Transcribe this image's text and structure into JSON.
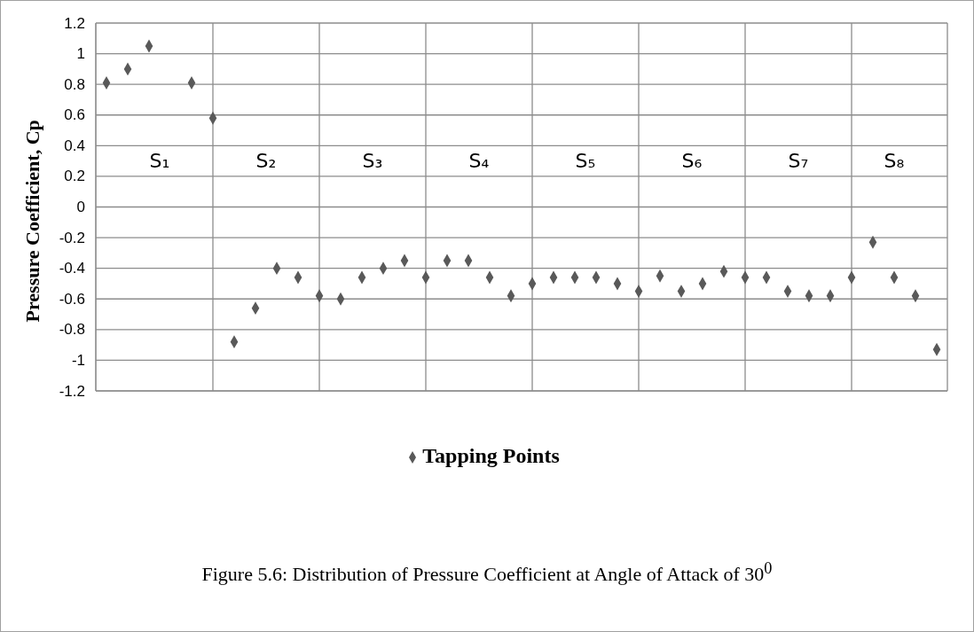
{
  "chart_data": {
    "type": "scatter",
    "ylabel": "Pressure  Coefficient, Cp",
    "categories": [
      null,
      null,
      null,
      null,
      null,
      null,
      null,
      null,
      null,
      null,
      null,
      null,
      null,
      null,
      null,
      null,
      null,
      null,
      null,
      null,
      null,
      null,
      null,
      null,
      null,
      null,
      null,
      null,
      null,
      null,
      null,
      null,
      null,
      null,
      null,
      null,
      null,
      null,
      null,
      null
    ],
    "series": [
      {
        "name": "Tapping Points",
        "color": "#595959",
        "values": [
          0.81,
          0.9,
          1.05,
          null,
          0.81,
          0.58,
          -0.88,
          -0.66,
          -0.4,
          -0.46,
          -0.58,
          -0.6,
          -0.46,
          -0.4,
          -0.35,
          -0.46,
          -0.35,
          -0.35,
          -0.46,
          -0.58,
          -0.5,
          -0.46,
          -0.46,
          -0.46,
          -0.5,
          -0.55,
          -0.45,
          -0.55,
          -0.5,
          -0.42,
          -0.46,
          -0.46,
          -0.55,
          -0.58,
          -0.58,
          -0.46,
          -0.23,
          -0.46,
          -0.58,
          -0.93
        ]
      }
    ],
    "ylim": [
      -1.2,
      1.2
    ],
    "yticks": [
      -1.2,
      -1,
      -0.8,
      -0.6,
      -0.4,
      -0.2,
      0,
      0.2,
      0.4,
      0.6,
      0.8,
      1,
      1.2
    ],
    "grid": true,
    "legend": "bottom",
    "marker": "diamond",
    "annotations": [
      "S₁",
      "S₂",
      "S₃",
      "S₄",
      "S₅",
      "S₆",
      "S₇",
      "S₈",
      "Figure 5.6: Distribution of Pressure Coefficient at Angle of Attack of 30$^{0}$"
    ]
  }
}
